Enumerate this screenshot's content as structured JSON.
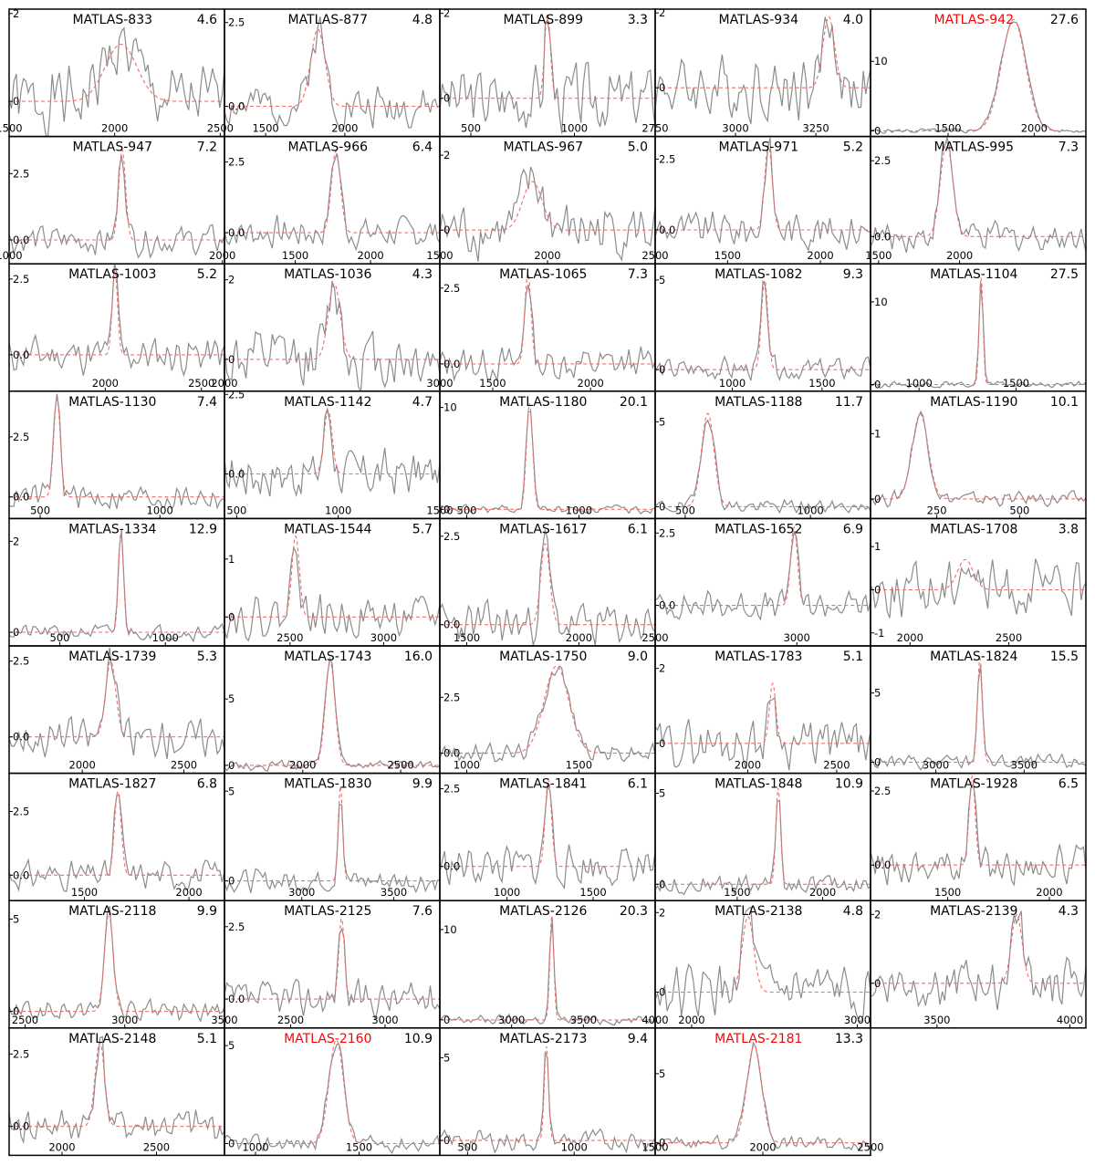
{
  "colors": {
    "data_line": "#8c8c8c",
    "fit_line": "#f26d6d",
    "frame": "#000000",
    "highlight_title": "#ff0000",
    "title": "#000000"
  },
  "chart_data": [
    {
      "type": "line",
      "title": "MATLAS-833",
      "snr": "4.6",
      "highlight": false,
      "xlim": [
        1500,
        2520
      ],
      "ylim": [
        -0.8,
        2.1
      ],
      "xticks": [
        1500,
        2000,
        2500
      ],
      "yticks": [
        0,
        2
      ],
      "center": 2030,
      "sigma": 75,
      "amp": 1.3,
      "noise": 0.55,
      "seed": 1
    },
    {
      "type": "line",
      "title": "MATLAS-877",
      "snr": "4.8",
      "highlight": false,
      "xlim": [
        1240,
        2600
      ],
      "ylim": [
        -0.9,
        2.9
      ],
      "xticks": [
        1500,
        2000
      ],
      "yticks": [
        0.0,
        2.5
      ],
      "center": 1830,
      "sigma": 45,
      "amp": 2.3,
      "noise": 0.45,
      "seed": 2
    },
    {
      "type": "line",
      "title": "MATLAS-899",
      "snr": "3.3",
      "highlight": false,
      "xlim": [
        350,
        1390
      ],
      "ylim": [
        -0.9,
        2.1
      ],
      "xticks": [
        500,
        1000
      ],
      "yticks": [
        0,
        2
      ],
      "center": 870,
      "sigma": 14,
      "amp": 2.0,
      "noise": 0.55,
      "seed": 3
    },
    {
      "type": "line",
      "title": "MATLAS-934",
      "snr": "4.0",
      "highlight": false,
      "xlim": [
        2750,
        3420
      ],
      "ylim": [
        -1.3,
        2.1
      ],
      "xticks": [
        2750,
        3000,
        3250
      ],
      "yticks": [
        0,
        2
      ],
      "center": 3290,
      "sigma": 18,
      "amp": 1.9,
      "noise": 0.6,
      "seed": 4
    },
    {
      "type": "line",
      "title": "MATLAS-942",
      "snr": "27.6",
      "highlight": true,
      "xlim": [
        1050,
        2300
      ],
      "ylim": [
        -0.8,
        17.5
      ],
      "xticks": [
        1500,
        2000
      ],
      "yticks": [
        0,
        10
      ],
      "center": 1880,
      "sigma": 70,
      "amp": 16,
      "noise": 0.25,
      "seed": 5
    },
    {
      "type": "line",
      "title": "MATLAS-947",
      "snr": "7.2",
      "highlight": false,
      "xlim": [
        1000,
        2010
      ],
      "ylim": [
        -0.9,
        3.9
      ],
      "xticks": [
        1000,
        2000
      ],
      "yticks": [
        0.0,
        2.5
      ],
      "center": 1530,
      "sigma": 16,
      "amp": 3.4,
      "noise": 0.4,
      "seed": 6
    },
    {
      "type": "line",
      "title": "MATLAS-966",
      "snr": "6.4",
      "highlight": false,
      "xlim": [
        1030,
        2460
      ],
      "ylim": [
        -1.1,
        3.4
      ],
      "xticks": [
        1500,
        2000
      ],
      "yticks": [
        0.0,
        2.5
      ],
      "center": 1770,
      "sigma": 30,
      "amp": 2.9,
      "noise": 0.4,
      "seed": 7
    },
    {
      "type": "line",
      "title": "MATLAS-967",
      "snr": "5.0",
      "highlight": false,
      "xlim": [
        1500,
        2500
      ],
      "ylim": [
        -0.9,
        2.5
      ],
      "xticks": [
        1500,
        2000,
        2500
      ],
      "yticks": [
        0,
        2
      ],
      "center": 1930,
      "sigma": 45,
      "amp": 1.3,
      "noise": 0.55,
      "seed": 8
    },
    {
      "type": "line",
      "title": "MATLAS-971",
      "snr": "5.2",
      "highlight": false,
      "xlim": [
        1110,
        2270
      ],
      "ylim": [
        -1.2,
        3.3
      ],
      "xticks": [
        1500,
        2000
      ],
      "yticks": [
        0.0,
        2.5
      ],
      "center": 1720,
      "sigma": 20,
      "amp": 3.0,
      "noise": 0.45,
      "seed": 9
    },
    {
      "type": "line",
      "title": "MATLAS-995",
      "snr": "7.3",
      "highlight": false,
      "xlim": [
        1450,
        2780
      ],
      "ylim": [
        -0.9,
        3.3
      ],
      "xticks": [
        1500,
        2000
      ],
      "yticks": [
        0.0,
        2.5
      ],
      "center": 1920,
      "sigma": 38,
      "amp": 3.1,
      "noise": 0.35,
      "seed": 10
    },
    {
      "type": "line",
      "title": "MATLAS-1003",
      "snr": "5.2",
      "highlight": false,
      "xlim": [
        1500,
        2620
      ],
      "ylim": [
        -1.2,
        3.0
      ],
      "xticks": [
        2000,
        2500
      ],
      "yticks": [
        0.0,
        2.5
      ],
      "center": 2050,
      "sigma": 14,
      "amp": 2.8,
      "noise": 0.45,
      "seed": 11
    },
    {
      "type": "line",
      "title": "MATLAS-1036",
      "snr": "4.3",
      "highlight": false,
      "xlim": [
        2000,
        3000
      ],
      "ylim": [
        -0.8,
        2.4
      ],
      "xticks": [
        2000,
        3000
      ],
      "yticks": [
        0,
        2
      ],
      "center": 2510,
      "sigma": 28,
      "amp": 1.9,
      "noise": 0.55,
      "seed": 12
    },
    {
      "type": "line",
      "title": "MATLAS-1065",
      "snr": "7.3",
      "highlight": false,
      "xlim": [
        1230,
        2330
      ],
      "ylim": [
        -0.9,
        3.3
      ],
      "xticks": [
        1500,
        2000
      ],
      "yticks": [
        0.0,
        2.5
      ],
      "center": 1680,
      "sigma": 16,
      "amp": 3.0,
      "noise": 0.4,
      "seed": 13
    },
    {
      "type": "line",
      "title": "MATLAS-1082",
      "snr": "9.3",
      "highlight": false,
      "xlim": [
        570,
        1770
      ],
      "ylim": [
        -1.2,
        5.9
      ],
      "xticks": [
        1000,
        1500
      ],
      "yticks": [
        0,
        5
      ],
      "center": 1180,
      "sigma": 18,
      "amp": 5.0,
      "noise": 0.45,
      "seed": 14
    },
    {
      "type": "line",
      "title": "MATLAS-1104",
      "snr": "27.5",
      "highlight": false,
      "xlim": [
        750,
        1860
      ],
      "ylim": [
        -0.8,
        14.6
      ],
      "xticks": [
        1000,
        1500
      ],
      "yticks": [
        0,
        10
      ],
      "center": 1320,
      "sigma": 10,
      "amp": 13,
      "noise": 0.25,
      "seed": 15
    },
    {
      "type": "line",
      "title": "MATLAS-1130",
      "snr": "7.4",
      "highlight": false,
      "xlim": [
        370,
        1270
      ],
      "ylim": [
        -0.9,
        4.4
      ],
      "xticks": [
        500,
        1000
      ],
      "yticks": [
        0.0,
        2.5
      ],
      "center": 570,
      "sigma": 14,
      "amp": 4.1,
      "noise": 0.4,
      "seed": 16
    },
    {
      "type": "line",
      "title": "MATLAS-1142",
      "snr": "4.7",
      "highlight": false,
      "xlim": [
        440,
        1500
      ],
      "ylim": [
        -1.4,
        2.6
      ],
      "xticks": [
        500,
        1000,
        1500
      ],
      "yticks": [
        0.0,
        2.5
      ],
      "center": 950,
      "sigma": 20,
      "amp": 2.0,
      "noise": 0.55,
      "seed": 17
    },
    {
      "type": "line",
      "title": "MATLAS-1180",
      "snr": "20.1",
      "highlight": false,
      "xlim": [
        380,
        1340
      ],
      "ylim": [
        -0.9,
        11.6
      ],
      "xticks": [
        500,
        1000
      ],
      "yticks": [
        0,
        10
      ],
      "center": 780,
      "sigma": 14,
      "amp": 10.4,
      "noise": 0.3,
      "seed": 18
    },
    {
      "type": "line",
      "title": "MATLAS-1188",
      "snr": "11.7",
      "highlight": false,
      "xlim": [
        380,
        1240
      ],
      "ylim": [
        -0.7,
        6.8
      ],
      "xticks": [
        500,
        1000
      ],
      "yticks": [
        0,
        5
      ],
      "center": 590,
      "sigma": 25,
      "amp": 5.5,
      "noise": 0.3,
      "seed": 19
    },
    {
      "type": "line",
      "title": "MATLAS-1190",
      "snr": "10.1",
      "highlight": false,
      "xlim": [
        50,
        700
      ],
      "ylim": [
        -0.3,
        1.65
      ],
      "xticks": [
        250,
        500
      ],
      "yticks": [
        0,
        1
      ],
      "center": 200,
      "sigma": 24,
      "amp": 1.3,
      "noise": 0.08,
      "seed": 20
    },
    {
      "type": "line",
      "title": "MATLAS-1334",
      "snr": "12.9",
      "highlight": false,
      "xlim": [
        260,
        1280
      ],
      "ylim": [
        -0.3,
        2.5
      ],
      "xticks": [
        500,
        1000
      ],
      "yticks": [
        0,
        2
      ],
      "center": 790,
      "sigma": 12,
      "amp": 2.2,
      "noise": 0.12,
      "seed": 21
    },
    {
      "type": "line",
      "title": "MATLAS-1544",
      "snr": "5.7",
      "highlight": false,
      "xlim": [
        2150,
        3300
      ],
      "ylim": [
        -0.5,
        1.7
      ],
      "xticks": [
        2500,
        3000
      ],
      "yticks": [
        0,
        1
      ],
      "center": 2530,
      "sigma": 20,
      "amp": 1.4,
      "noise": 0.25,
      "seed": 22
    },
    {
      "type": "line",
      "title": "MATLAS-1617",
      "snr": "6.1",
      "highlight": false,
      "xlim": [
        1380,
        2340
      ],
      "ylim": [
        -0.6,
        3.0
      ],
      "xticks": [
        1500,
        2000
      ],
      "yticks": [
        0.0,
        2.5
      ],
      "center": 1850,
      "sigma": 20,
      "amp": 2.3,
      "noise": 0.45,
      "seed": 23
    },
    {
      "type": "line",
      "title": "MATLAS-1652",
      "snr": "6.9",
      "highlight": false,
      "xlim": [
        2500,
        3260
      ],
      "ylim": [
        -1.4,
        3.0
      ],
      "xticks": [
        2500,
        3000
      ],
      "yticks": [
        0.0,
        2.5
      ],
      "center": 2990,
      "sigma": 12,
      "amp": 2.7,
      "noise": 0.35,
      "seed": 24
    },
    {
      "type": "line",
      "title": "MATLAS-1708",
      "snr": "3.8",
      "highlight": false,
      "xlim": [
        1800,
        2890
      ],
      "ylim": [
        -1.3,
        1.65
      ],
      "xticks": [
        2000,
        2500
      ],
      "yticks": [
        -1,
        0,
        1
      ],
      "center": 2280,
      "sigma": 40,
      "amp": 0.7,
      "noise": 0.45,
      "seed": 25
    },
    {
      "type": "line",
      "title": "MATLAS-1739",
      "snr": "5.3",
      "highlight": false,
      "xlim": [
        1640,
        2700
      ],
      "ylim": [
        -1.2,
        3.0
      ],
      "xticks": [
        2000,
        2500
      ],
      "yticks": [
        0.0,
        2.5
      ],
      "center": 2140,
      "sigma": 25,
      "amp": 2.5,
      "noise": 0.45,
      "seed": 26
    },
    {
      "type": "line",
      "title": "MATLAS-1743",
      "snr": "16.0",
      "highlight": false,
      "xlim": [
        1600,
        2700
      ],
      "ylim": [
        -0.6,
        9.0
      ],
      "xticks": [
        2000,
        2500
      ],
      "yticks": [
        0,
        5
      ],
      "center": 2140,
      "sigma": 25,
      "amp": 7.8,
      "noise": 0.3,
      "seed": 27
    },
    {
      "type": "line",
      "title": "MATLAS-1750",
      "snr": "9.0",
      "highlight": false,
      "xlim": [
        880,
        1840
      ],
      "ylim": [
        -0.9,
        4.8
      ],
      "xticks": [
        1000,
        1500
      ],
      "yticks": [
        0.0,
        2.5
      ],
      "center": 1400,
      "sigma": 55,
      "amp": 3.9,
      "noise": 0.3,
      "seed": 28
    },
    {
      "type": "line",
      "title": "MATLAS-1783",
      "snr": "5.1",
      "highlight": false,
      "xlim": [
        1480,
        2690
      ],
      "ylim": [
        -0.8,
        2.6
      ],
      "xticks": [
        2000,
        2500
      ],
      "yticks": [
        0,
        2
      ],
      "center": 2140,
      "sigma": 18,
      "amp": 1.6,
      "noise": 0.45,
      "seed": 29
    },
    {
      "type": "line",
      "title": "MATLAS-1824",
      "snr": "15.5",
      "highlight": false,
      "xlim": [
        2630,
        3850
      ],
      "ylim": [
        -0.8,
        8.4
      ],
      "xticks": [
        3000,
        3500
      ],
      "yticks": [
        0,
        5
      ],
      "center": 3250,
      "sigma": 14,
      "amp": 7.5,
      "noise": 0.4,
      "seed": 30
    },
    {
      "type": "line",
      "title": "MATLAS-1827",
      "snr": "6.8",
      "highlight": false,
      "xlim": [
        1140,
        2170
      ],
      "ylim": [
        -1.0,
        4.0
      ],
      "xticks": [
        1500,
        2000
      ],
      "yticks": [
        0.0,
        2.5
      ],
      "center": 1660,
      "sigma": 16,
      "amp": 3.3,
      "noise": 0.4,
      "seed": 31
    },
    {
      "type": "line",
      "title": "MATLAS-1830",
      "snr": "9.9",
      "highlight": false,
      "xlim": [
        2580,
        3750
      ],
      "ylim": [
        -1.1,
        6.0
      ],
      "xticks": [
        3000,
        3500
      ],
      "yticks": [
        0,
        5
      ],
      "center": 3210,
      "sigma": 12,
      "amp": 5.3,
      "noise": 0.45,
      "seed": 32
    },
    {
      "type": "line",
      "title": "MATLAS-1841",
      "snr": "6.1",
      "highlight": false,
      "xlim": [
        610,
        1860
      ],
      "ylim": [
        -1.1,
        3.0
      ],
      "xticks": [
        1000,
        1500
      ],
      "yticks": [
        0.0,
        2.5
      ],
      "center": 1240,
      "sigma": 18,
      "amp": 2.8,
      "noise": 0.45,
      "seed": 33
    },
    {
      "type": "line",
      "title": "MATLAS-1848",
      "snr": "10.9",
      "highlight": false,
      "xlim": [
        1020,
        2280
      ],
      "ylim": [
        -0.9,
        6.1
      ],
      "xticks": [
        1500,
        2000
      ],
      "yticks": [
        0,
        5
      ],
      "center": 1740,
      "sigma": 14,
      "amp": 5.3,
      "noise": 0.4,
      "seed": 34
    },
    {
      "type": "line",
      "title": "MATLAS-1928",
      "snr": "6.5",
      "highlight": false,
      "xlim": [
        1120,
        2180
      ],
      "ylim": [
        -1.2,
        3.1
      ],
      "xticks": [
        1500,
        2000
      ],
      "yticks": [
        0.0,
        2.5
      ],
      "center": 1620,
      "sigma": 15,
      "amp": 3.0,
      "noise": 0.45,
      "seed": 35
    },
    {
      "type": "line",
      "title": "MATLAS-2118",
      "snr": "9.9",
      "highlight": false,
      "xlim": [
        2420,
        3500
      ],
      "ylim": [
        -0.9,
        6.0
      ],
      "xticks": [
        2500,
        3000,
        3500
      ],
      "yticks": [
        0,
        5
      ],
      "center": 2920,
      "sigma": 22,
      "amp": 5.3,
      "noise": 0.4,
      "seed": 36
    },
    {
      "type": "line",
      "title": "MATLAS-2125",
      "snr": "7.6",
      "highlight": false,
      "xlim": [
        2150,
        3290
      ],
      "ylim": [
        -1.0,
        3.4
      ],
      "xticks": [
        2500,
        3000
      ],
      "yticks": [
        0.0,
        2.5
      ],
      "center": 2770,
      "sigma": 15,
      "amp": 2.8,
      "noise": 0.45,
      "seed": 37
    },
    {
      "type": "line",
      "title": "MATLAS-2126",
      "snr": "20.3",
      "highlight": false,
      "xlim": [
        2500,
        4000
      ],
      "ylim": [
        -0.9,
        13.2
      ],
      "xticks": [
        3000,
        3500,
        4000
      ],
      "yticks": [
        0,
        10
      ],
      "center": 3280,
      "sigma": 14,
      "amp": 11.6,
      "noise": 0.4,
      "seed": 38
    },
    {
      "type": "line",
      "title": "MATLAS-2138",
      "snr": "4.8",
      "highlight": false,
      "xlim": [
        1780,
        3080
      ],
      "ylim": [
        -0.9,
        2.3
      ],
      "xticks": [
        2000,
        3000
      ],
      "yticks": [
        0,
        2
      ],
      "center": 2340,
      "sigma": 35,
      "amp": 1.9,
      "noise": 0.45,
      "seed": 39
    },
    {
      "type": "line",
      "title": "MATLAS-2139",
      "snr": "4.3",
      "highlight": false,
      "xlim": [
        3250,
        4060
      ],
      "ylim": [
        -1.3,
        2.4
      ],
      "xticks": [
        3500,
        4000
      ],
      "yticks": [
        0,
        2
      ],
      "center": 3800,
      "sigma": 20,
      "amp": 2.0,
      "noise": 0.5,
      "seed": 40
    },
    {
      "type": "line",
      "title": "MATLAS-2148",
      "snr": "5.1",
      "highlight": false,
      "xlim": [
        1720,
        2860
      ],
      "ylim": [
        -1.0,
        3.4
      ],
      "xticks": [
        2000,
        2500
      ],
      "yticks": [
        0.0,
        2.5
      ],
      "center": 2200,
      "sigma": 25,
      "amp": 2.9,
      "noise": 0.45,
      "seed": 41
    },
    {
      "type": "line",
      "title": "MATLAS-2160",
      "snr": "10.9",
      "highlight": true,
      "xlim": [
        850,
        1890
      ],
      "ylim": [
        -0.6,
        5.9
      ],
      "xticks": [
        1000,
        1500
      ],
      "yticks": [
        0,
        5
      ],
      "center": 1390,
      "sigma": 35,
      "amp": 5.3,
      "noise": 0.3,
      "seed": 42
    },
    {
      "type": "line",
      "title": "MATLAS-2173",
      "snr": "9.4",
      "highlight": false,
      "xlim": [
        370,
        1380
      ],
      "ylim": [
        -0.9,
        6.8
      ],
      "xticks": [
        500,
        1000
      ],
      "yticks": [
        0,
        5
      ],
      "center": 870,
      "sigma": 10,
      "amp": 5.7,
      "noise": 0.45,
      "seed": 43
    },
    {
      "type": "line",
      "title": "MATLAS-2181",
      "snr": "13.3",
      "highlight": true,
      "xlim": [
        1500,
        2500
      ],
      "ylim": [
        -0.9,
        8.3
      ],
      "xticks": [
        1500,
        2000,
        2500
      ],
      "yticks": [
        0,
        5
      ],
      "center": 1960,
      "sigma": 35,
      "amp": 7.0,
      "noise": 0.35,
      "seed": 44
    }
  ]
}
